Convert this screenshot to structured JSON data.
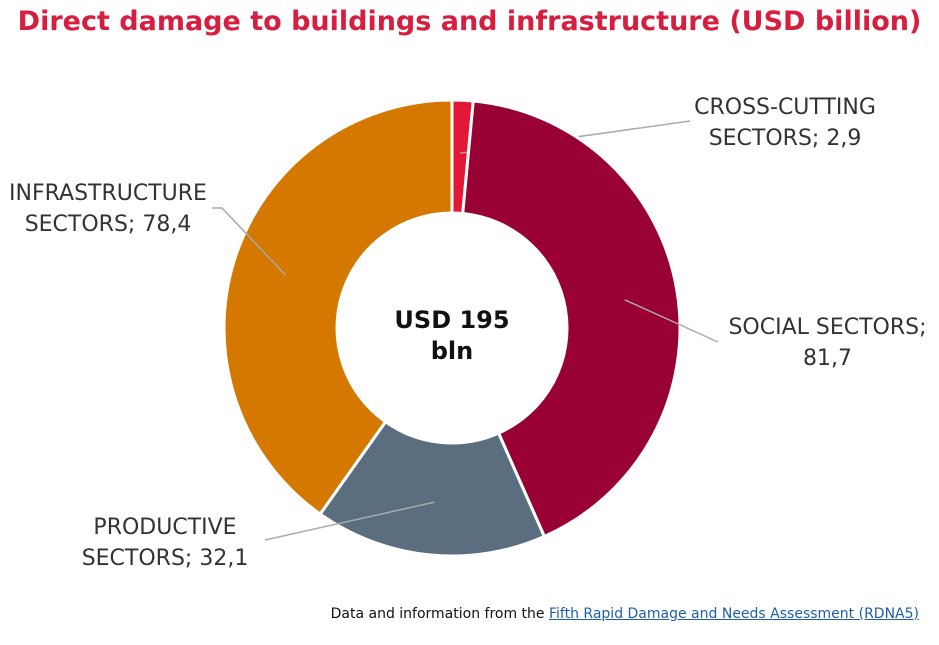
{
  "chart_data": {
    "type": "donut",
    "title": "Direct damage to buildings and infrastructure (USD billion)",
    "values": [
      2.9,
      81.7,
      32.1,
      78.4
    ],
    "value_labels": [
      "CROSS-CUTTING SECTORS; 2,9",
      "SOCIAL SECTORS; 81,7",
      "PRODUCTIVE SECTORS; 32,1",
      "INFRASTRUCTURE SECTORS; 78,4"
    ],
    "colors": [
      "#e31837",
      "#990033",
      "#5a6e80",
      "#d47800"
    ],
    "center_label": "USD 195 bln",
    "footer": {
      "text": "Data and information from the",
      "link": "Fifth Rapid Damage and Needs Assessment (RDNA5)"
    }
  }
}
